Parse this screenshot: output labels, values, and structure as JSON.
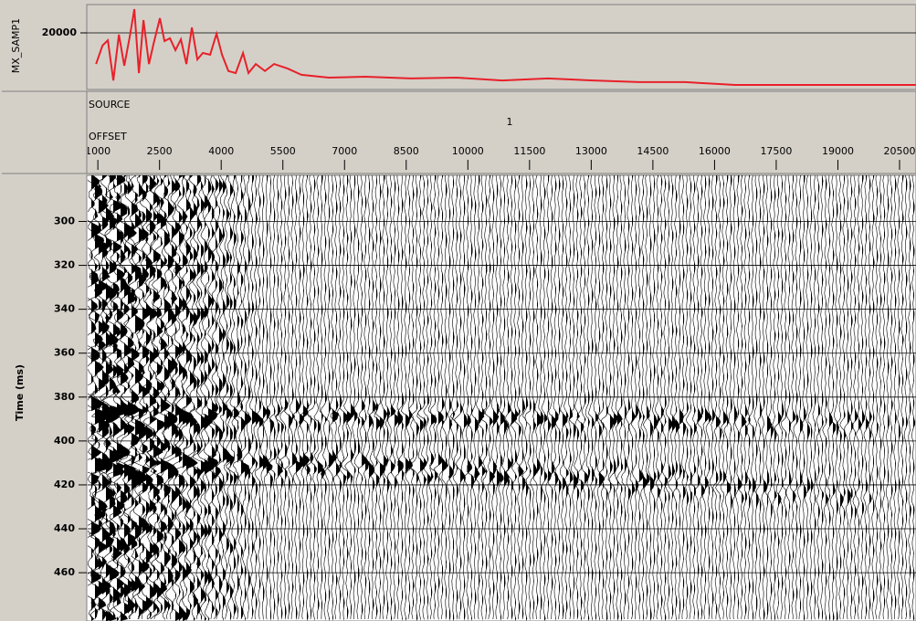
{
  "amplitude_panel": {
    "label": "MX_SAMP1",
    "ylim": [
      0,
      30000
    ],
    "yticks": [
      20000
    ],
    "color": "#e8202a",
    "offsets": [
      956,
      1111,
      1244,
      1377,
      1511,
      1644,
      1777,
      1888,
      1999,
      2110,
      2243,
      2354,
      2510,
      2621,
      2754,
      2887,
      3020,
      3153,
      3287,
      3420,
      3553,
      3731,
      3886,
      4019,
      4175,
      4352,
      4530,
      4663,
      4841,
      5063,
      5285,
      5618,
      5951,
      6617,
      7505,
      8615,
      9725,
      10835,
      11945,
      13055,
      14165,
      15275,
      16163,
      16496,
      20891
    ],
    "values": [
      9000,
      15500,
      17400,
      3200,
      19400,
      8400,
      18700,
      28400,
      5800,
      24500,
      9000,
      16100,
      25200,
      17100,
      18100,
      13900,
      17700,
      9000,
      21900,
      10600,
      12900,
      12300,
      19700,
      12300,
      6500,
      5800,
      12900,
      5800,
      9000,
      6500,
      9000,
      7400,
      5200,
      4200,
      4500,
      3900,
      4200,
      3200,
      3900,
      3200,
      2600,
      2600,
      1900,
      1600,
      1600
    ]
  },
  "header_panel": {
    "source_label": "SOURCE",
    "source_value": 1,
    "offset_label": "OFFSET",
    "xlim": [
      730,
      20900
    ],
    "offset_ticks": [
      1000,
      2500,
      4000,
      5500,
      7000,
      8500,
      10000,
      11500,
      13000,
      14500,
      16000,
      17500,
      19000,
      20500
    ]
  },
  "section": {
    "time_label": "Time (ms)",
    "ylim": [
      279,
      482
    ],
    "yticks": [
      300,
      320,
      340,
      360,
      380,
      400,
      420,
      440,
      460
    ]
  }
}
